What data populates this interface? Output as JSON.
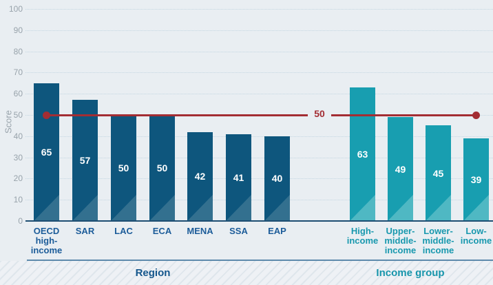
{
  "chart_data": {
    "type": "bar",
    "title": "",
    "xlabel": "",
    "ylabel": "Score",
    "ylim": [
      0,
      100
    ],
    "ytick_step": 10,
    "yticks": [
      0,
      10,
      20,
      30,
      40,
      50,
      60,
      70,
      80,
      90,
      100
    ],
    "grid": "dotted horizontal gridlines, on",
    "legend": "none",
    "reference_line": {
      "value": 50,
      "label": "50",
      "color": "#a32d33",
      "style": "solid with round end dots"
    },
    "groups": [
      {
        "label": "Region",
        "bar_color": "#0e567d",
        "bar_sheen_color": "#33708f",
        "text_color": "#1c5c99",
        "categories": [
          "OECD high-income",
          "SAR",
          "LAC",
          "ECA",
          "MENA",
          "SSA",
          "EAP"
        ],
        "category_lines": [
          [
            "OECD",
            "high-",
            "income"
          ],
          [
            "SAR"
          ],
          [
            "LAC"
          ],
          [
            "ECA"
          ],
          [
            "MENA"
          ],
          [
            "SSA"
          ],
          [
            "EAP"
          ]
        ],
        "values": [
          65,
          57,
          50,
          50,
          42,
          41,
          40
        ]
      },
      {
        "label": "Income group",
        "bar_color": "#189eb0",
        "bar_sheen_color": "#4fb8c3",
        "text_color": "#1898ae",
        "categories": [
          "High-income",
          "Upper-middle-income",
          "Lower-middle-income",
          "Low-income"
        ],
        "category_lines": [
          [
            "High-",
            "income"
          ],
          [
            "Upper-",
            "middle-",
            "income"
          ],
          [
            "Lower-",
            "middle-",
            "income"
          ],
          [
            "Low-",
            "income"
          ]
        ],
        "values": [
          63,
          49,
          45,
          39
        ]
      }
    ]
  },
  "colors": {
    "background": "#e9eef2",
    "grid_line": "#c3d6e1",
    "tick_text": "#98a3ab",
    "axis_line": "#1c4d72",
    "group_rule": "#5d8aac",
    "value_label_text": "#ffffff",
    "reference_line": "#a32d33"
  }
}
